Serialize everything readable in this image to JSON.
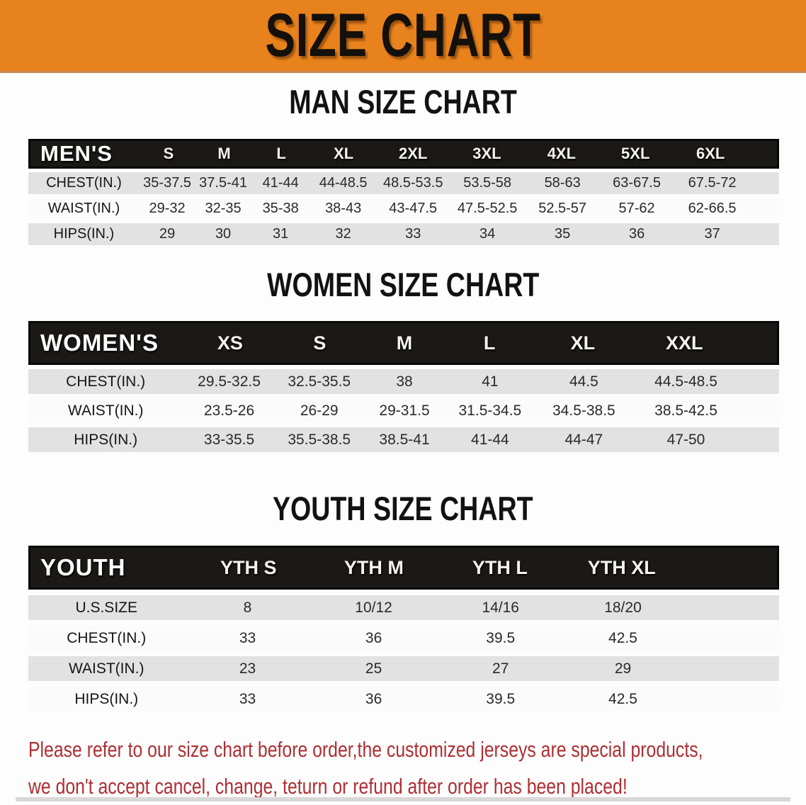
{
  "banner": {
    "title": "SIZE CHART",
    "bg_color": "#E8821C",
    "text_color": "#14100C"
  },
  "sections": [
    {
      "heading": "MAN SIZE CHART",
      "table": {
        "header_label": "MEN'S",
        "sizes": [
          "S",
          "M",
          "L",
          "XL",
          "2XL",
          "3XL",
          "4XL",
          "5XL",
          "6XL"
        ],
        "rows": [
          {
            "label": "CHEST(IN.)",
            "values": [
              "35-37.5",
              "37.5-41",
              "41-44",
              "44-48.5",
              "48.5-53.5",
              "53.5-58",
              "58-63",
              "63-67.5",
              "67.5-72"
            ]
          },
          {
            "label": "WAIST(IN.)",
            "values": [
              "29-32",
              "32-35",
              "35-38",
              "38-43",
              "43-47.5",
              "47.5-52.5",
              "52.5-57",
              "57-62",
              "62-66.5"
            ]
          },
          {
            "label": "HIPS(IN.)",
            "values": [
              "29",
              "30",
              "31",
              "32",
              "33",
              "34",
              "35",
              "36",
              "37"
            ]
          }
        ]
      }
    },
    {
      "heading": "WOMEN SIZE CHART",
      "table": {
        "header_label": "WOMEN'S",
        "sizes": [
          "XS",
          "S",
          "M",
          "L",
          "XL",
          "XXL"
        ],
        "rows": [
          {
            "label": "CHEST(IN.)",
            "values": [
              "29.5-32.5",
              "32.5-35.5",
              "38",
              "41",
              "44.5",
              "44.5-48.5"
            ]
          },
          {
            "label": "WAIST(IN.)",
            "values": [
              "23.5-26",
              "26-29",
              "29-31.5",
              "31.5-34.5",
              "34.5-38.5",
              "38.5-42.5"
            ]
          },
          {
            "label": "HIPS(IN.)",
            "values": [
              "33-35.5",
              "35.5-38.5",
              "38.5-41",
              "41-44",
              "44-47",
              "47-50"
            ]
          }
        ]
      }
    },
    {
      "heading": "YOUTH SIZE CHART",
      "table": {
        "header_label": "YOUTH",
        "sizes": [
          "YTH S",
          "YTH M",
          "YTH L",
          "YTH XL"
        ],
        "rows": [
          {
            "label": "U.S.SIZE",
            "values": [
              "8",
              "10/12",
              "14/16",
              "18/20"
            ]
          },
          {
            "label": "CHEST(IN.)",
            "values": [
              "33",
              "36",
              "39.5",
              "42.5"
            ]
          },
          {
            "label": "WAIST(IN.)",
            "values": [
              "23",
              "25",
              "27",
              "29"
            ]
          },
          {
            "label": "HIPS(IN.)",
            "values": [
              "33",
              "36",
              "39.5",
              "42.5"
            ]
          }
        ]
      }
    }
  ],
  "disclaimer": {
    "line1": "Please refer to our size chart before order,the customized jerseys are special products,",
    "line2": "we don't accept cancel, change, teturn or refund after order has been placed!",
    "text_color": "#AE2F34"
  }
}
